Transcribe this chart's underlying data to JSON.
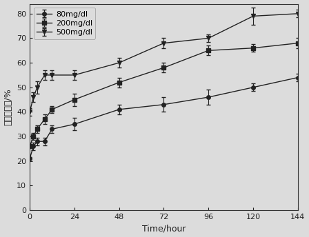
{
  "title": "",
  "xlabel": "Time/hour",
  "ylabel": "累积释放率/%",
  "xlim": [
    0,
    144
  ],
  "ylim": [
    0,
    84
  ],
  "yticks": [
    0,
    10,
    20,
    30,
    40,
    50,
    60,
    70,
    80
  ],
  "xticks": [
    0,
    24,
    48,
    72,
    96,
    120,
    144
  ],
  "series": [
    {
      "label": "80mg/dl",
      "color": "#222222",
      "marker": "o",
      "markersize": 4,
      "x": [
        0,
        2,
        4,
        8,
        12,
        24,
        48,
        72,
        96,
        120,
        144
      ],
      "y": [
        21,
        26,
        28,
        28,
        33,
        35,
        41,
        43,
        46,
        50,
        54
      ],
      "yerr": [
        0.5,
        1.5,
        1.5,
        1.5,
        1.5,
        2.5,
        2,
        3,
        3,
        1.5,
        1.5
      ]
    },
    {
      "label": "200mg/dl",
      "color": "#222222",
      "marker": "s",
      "markersize": 4,
      "x": [
        0,
        2,
        4,
        8,
        12,
        24,
        48,
        72,
        96,
        120,
        144
      ],
      "y": [
        26,
        30,
        33,
        37,
        41,
        45,
        52,
        58,
        65,
        66,
        68
      ],
      "yerr": [
        0.5,
        1.5,
        1.5,
        2,
        1.5,
        2.5,
        2,
        2,
        2,
        1.5,
        2
      ]
    },
    {
      "label": "500mg/dl",
      "color": "#222222",
      "marker": "v",
      "markersize": 5,
      "x": [
        0,
        2,
        4,
        8,
        12,
        24,
        48,
        72,
        96,
        120,
        144
      ],
      "y": [
        40,
        46,
        50,
        55,
        55,
        55,
        60,
        68,
        70,
        79,
        80
      ],
      "yerr": [
        1.5,
        2,
        2.5,
        2,
        2,
        2,
        2,
        2,
        1.5,
        3.5,
        1.5
      ]
    }
  ],
  "linewidth": 1.0,
  "capsize": 2,
  "elinewidth": 0.8,
  "plot_bg_color": "#dcdcdc",
  "fig_bg_color": "#dcdcdc",
  "legend_loc": "upper left",
  "legend_fontsize": 8,
  "tick_fontsize": 8,
  "label_fontsize": 9
}
